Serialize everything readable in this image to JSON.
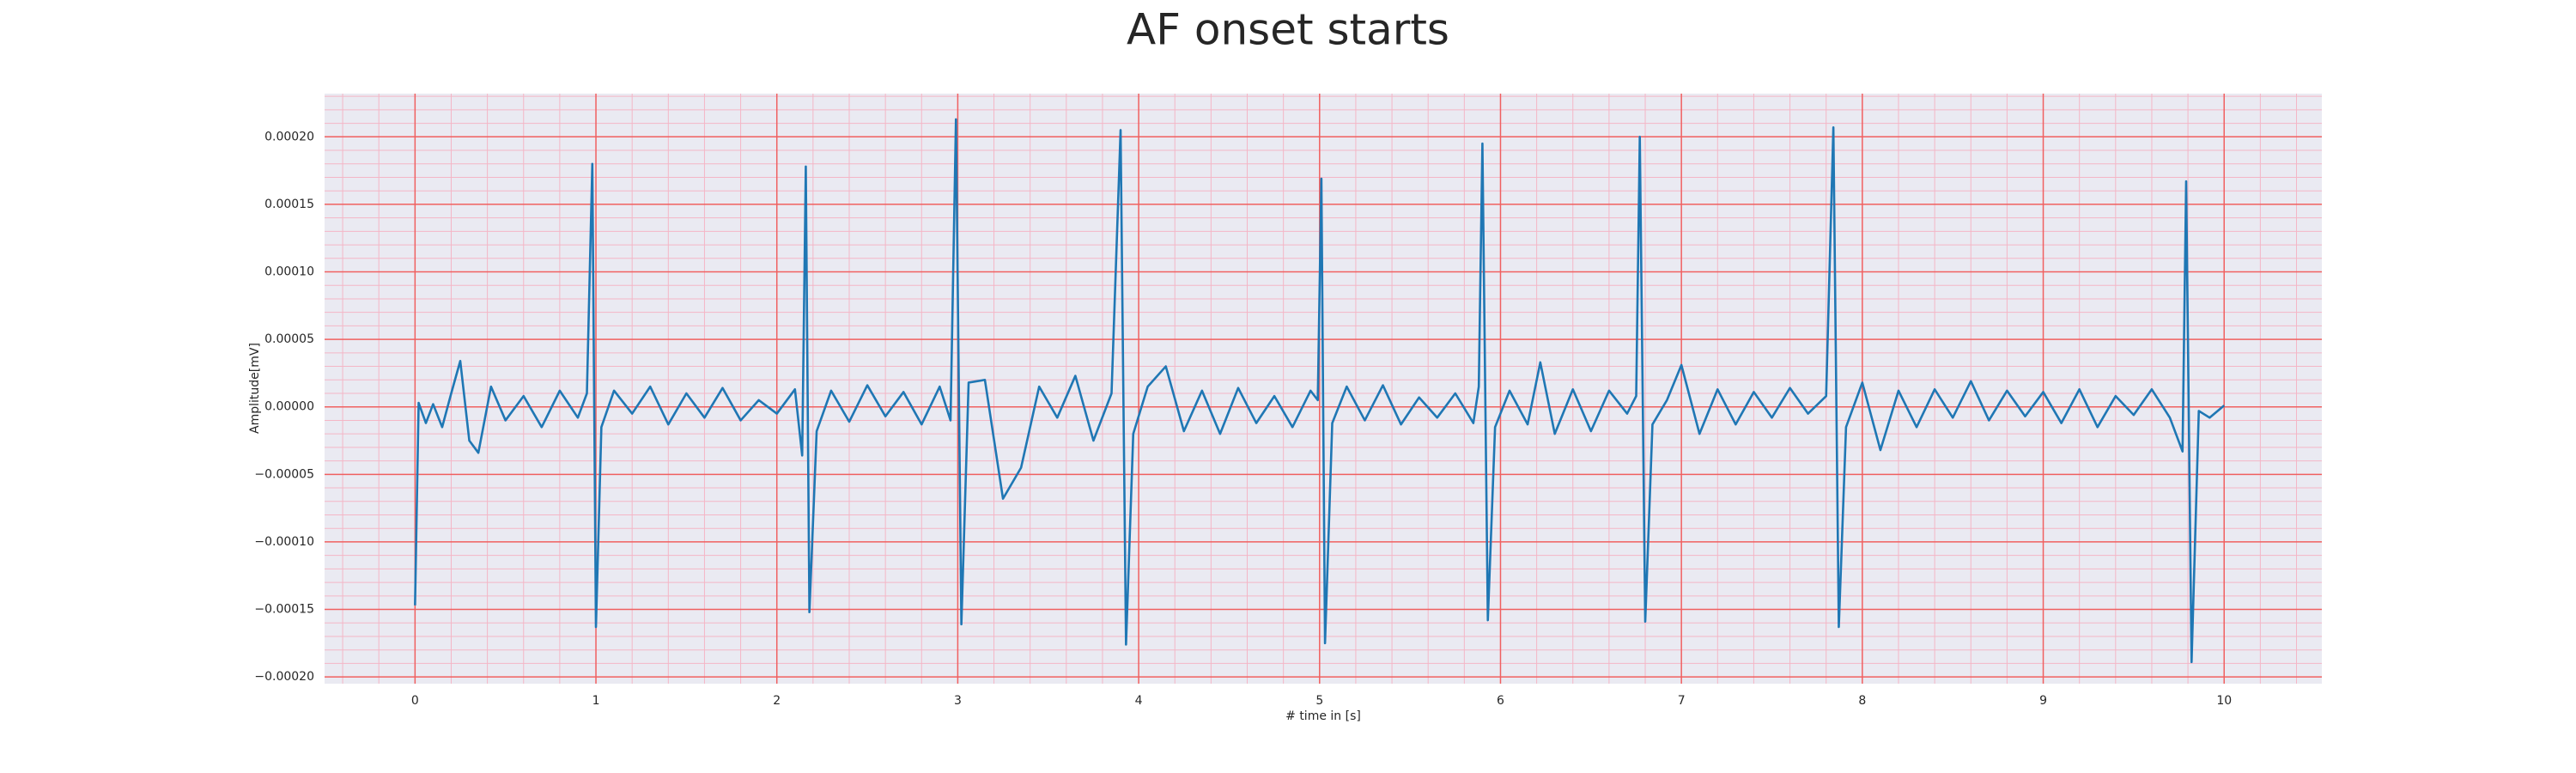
{
  "chart_data": {
    "type": "line",
    "title": "AF onset starts",
    "xlabel": "# time in [s]",
    "ylabel": "Amplitude[mV]",
    "color": "#1f77b4",
    "grid": true,
    "minor_grid": true,
    "xlim": [
      -0.5,
      10.54
    ],
    "ylim": [
      -0.000205,
      0.000232
    ],
    "xticks": [
      0,
      1,
      2,
      3,
      4,
      5,
      6,
      7,
      8,
      9,
      10
    ],
    "yticks": [
      {
        "value": -0.0002,
        "label": "−0.00020"
      },
      {
        "value": -0.00015,
        "label": "−0.00015"
      },
      {
        "value": -0.0001,
        "label": "−0.00010"
      },
      {
        "value": -5e-05,
        "label": "−0.00005"
      },
      {
        "value": 0,
        "label": "0.00000"
      },
      {
        "value": 5e-05,
        "label": "0.00005"
      },
      {
        "value": 0.0001,
        "label": "0.00010"
      },
      {
        "value": 0.00015,
        "label": "0.00015"
      },
      {
        "value": 0.0002,
        "label": "0.00020"
      }
    ],
    "x": [
      0,
      0.02,
      0.06,
      0.1,
      0.15,
      0.2,
      0.25,
      0.3,
      0.35,
      0.42,
      0.5,
      0.6,
      0.7,
      0.8,
      0.9,
      0.95,
      0.98,
      1.0,
      1.03,
      1.1,
      1.2,
      1.3,
      1.4,
      1.5,
      1.6,
      1.7,
      1.8,
      1.9,
      2.0,
      2.1,
      2.14,
      2.16,
      2.18,
      2.22,
      2.3,
      2.4,
      2.5,
      2.6,
      2.7,
      2.8,
      2.9,
      2.96,
      2.99,
      3.02,
      3.06,
      3.15,
      3.25,
      3.35,
      3.45,
      3.55,
      3.65,
      3.75,
      3.85,
      3.9,
      3.93,
      3.97,
      4.05,
      4.15,
      4.25,
      4.35,
      4.45,
      4.55,
      4.65,
      4.75,
      4.85,
      4.95,
      4.99,
      5.01,
      5.03,
      5.07,
      5.15,
      5.25,
      5.35,
      5.45,
      5.55,
      5.65,
      5.75,
      5.85,
      5.88,
      5.9,
      5.93,
      5.97,
      6.05,
      6.15,
      6.22,
      6.3,
      6.4,
      6.5,
      6.6,
      6.7,
      6.75,
      6.77,
      6.8,
      6.84,
      6.92,
      7.0,
      7.1,
      7.2,
      7.3,
      7.4,
      7.5,
      7.6,
      7.7,
      7.8,
      7.84,
      7.87,
      7.91,
      8.0,
      8.1,
      8.2,
      8.3,
      8.4,
      8.5,
      8.6,
      8.7,
      8.8,
      8.9,
      9.0,
      9.1,
      9.2,
      9.3,
      9.4,
      9.5,
      9.6,
      9.7,
      9.77,
      9.79,
      9.82,
      9.86,
      9.92,
      10.0
    ],
    "values": [
      -0.000147,
      3e-06,
      -1.2e-05,
      2e-06,
      -1.5e-05,
      1e-05,
      3.4e-05,
      -2.5e-05,
      -3.4e-05,
      1.5e-05,
      -1e-05,
      8e-06,
      -1.5e-05,
      1.2e-05,
      -8e-06,
      1e-05,
      0.00018,
      -0.000163,
      -1.5e-05,
      1.2e-05,
      -5e-06,
      1.5e-05,
      -1.3e-05,
      1e-05,
      -8e-06,
      1.4e-05,
      -1e-05,
      5e-06,
      -5e-06,
      1.3e-05,
      -3.6e-05,
      0.000178,
      -0.000152,
      -1.8e-05,
      1.2e-05,
      -1.1e-05,
      1.6e-05,
      -7e-06,
      1.1e-05,
      -1.3e-05,
      1.5e-05,
      -1e-05,
      0.000213,
      -0.000161,
      1.8e-05,
      2e-05,
      -6.8e-05,
      -4.5e-05,
      1.5e-05,
      -8e-06,
      2.3e-05,
      -2.5e-05,
      1e-05,
      0.000205,
      -0.000176,
      -2e-05,
      1.5e-05,
      3e-05,
      -1.8e-05,
      1.2e-05,
      -2e-05,
      1.4e-05,
      -1.2e-05,
      8e-06,
      -1.5e-05,
      1.2e-05,
      5e-06,
      0.000169,
      -0.000175,
      -1.2e-05,
      1.5e-05,
      -1e-05,
      1.6e-05,
      -1.3e-05,
      7e-06,
      -8e-06,
      1e-05,
      -1.2e-05,
      1.5e-05,
      0.000195,
      -0.000158,
      -1.5e-05,
      1.2e-05,
      -1.3e-05,
      3.3e-05,
      -2e-05,
      1.3e-05,
      -1.8e-05,
      1.2e-05,
      -5e-06,
      8e-06,
      0.0002,
      -0.000159,
      -1.3e-05,
      5e-06,
      3.1e-05,
      -2e-05,
      1.3e-05,
      -1.3e-05,
      1.1e-05,
      -8e-06,
      1.4e-05,
      -5e-06,
      8e-06,
      0.000207,
      -0.000163,
      -1.5e-05,
      1.8e-05,
      -3.2e-05,
      1.2e-05,
      -1.5e-05,
      1.3e-05,
      -8e-06,
      1.9e-05,
      -1e-05,
      1.2e-05,
      -7e-06,
      1.1e-05,
      -1.2e-05,
      1.3e-05,
      -1.5e-05,
      8e-06,
      -6e-06,
      1.3e-05,
      -8e-06,
      -3.3e-05,
      0.000167,
      -0.000189,
      -3e-06,
      -8e-06,
      1e-06
    ]
  }
}
